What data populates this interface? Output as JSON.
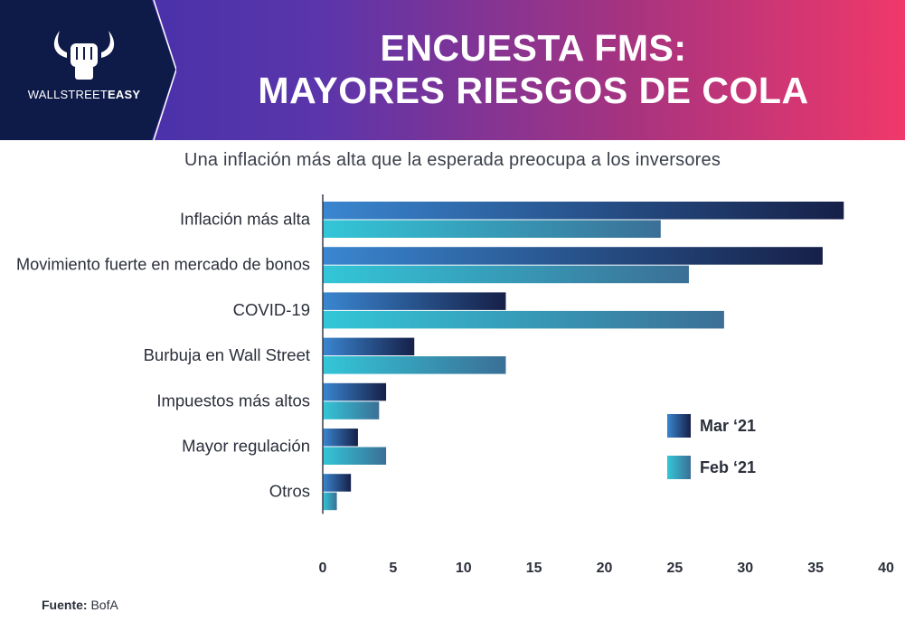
{
  "brand": {
    "name_part1": "WALLSTREET",
    "name_part2": "EASY",
    "colors": {
      "navy": "#0e1a47",
      "gradient_start": "#3c2fa8",
      "gradient_end": "#f0386a"
    }
  },
  "header": {
    "title_line1": "ENCUESTA FMS:",
    "title_line2": "MAYORES RIESGOS DE COLA"
  },
  "subtitle": "Una inflación más alta que la esperada preocupa a los inversores",
  "chart_data": {
    "type": "bar",
    "orientation": "horizontal",
    "categories": [
      "Inflación más alta",
      "Movimiento fuerte en mercado de bonos",
      "COVID-19",
      "Burbuja en Wall Street",
      "Impuestos más altos",
      "Mayor regulación",
      "Otros"
    ],
    "series": [
      {
        "name": "Mar ‘21",
        "values": [
          37,
          35.5,
          13,
          6.5,
          4.5,
          2.5,
          2
        ],
        "color_start": "#3a86d0",
        "color_end": "#162048"
      },
      {
        "name": "Feb ‘21",
        "values": [
          24,
          26,
          28.5,
          13,
          4,
          4.5,
          1
        ],
        "color_start": "#33c6d8",
        "color_end": "#3b6f96"
      }
    ],
    "xlim": [
      0,
      40
    ],
    "xticks": [
      "0",
      "5",
      "10",
      "15",
      "20",
      "25",
      "30",
      "35",
      "40"
    ],
    "legend_position": "right"
  },
  "source": {
    "label": "Fuente:",
    "value": "BofA"
  }
}
